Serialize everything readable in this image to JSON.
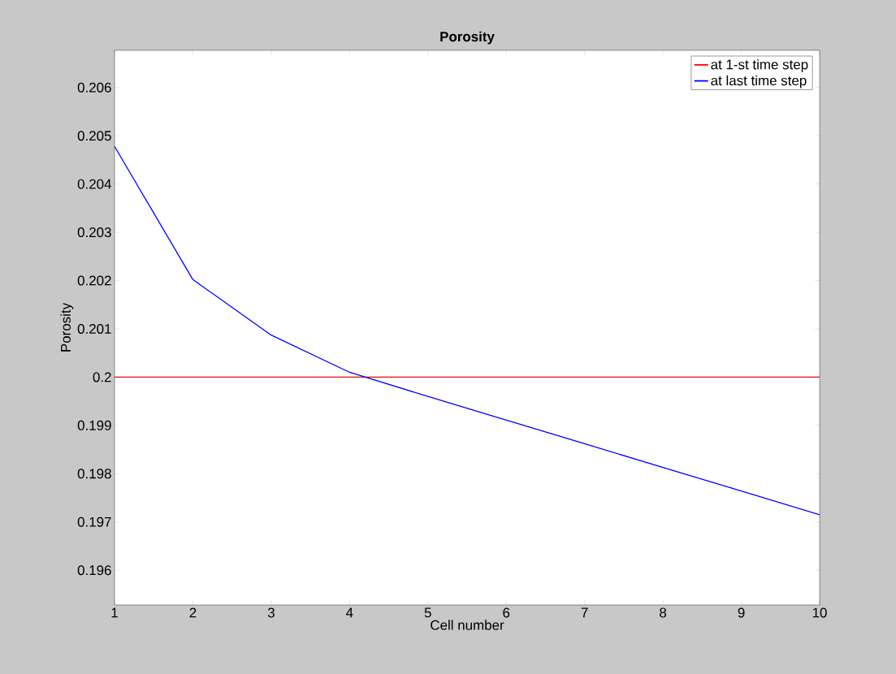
{
  "chart_data": {
    "type": "line",
    "title": "Porosity",
    "xlabel": "Cell number",
    "ylabel": "Porosity",
    "x": [
      1,
      2,
      3,
      4,
      5,
      6,
      7,
      8,
      9,
      10
    ],
    "series": [
      {
        "name": "at 1-st time step",
        "color": "#ff0000",
        "values": [
          0.2,
          0.2,
          0.2,
          0.2,
          0.2,
          0.2,
          0.2,
          0.2,
          0.2,
          0.2
        ]
      },
      {
        "name": "at last time step",
        "color": "#0000ff",
        "values": [
          0.20478,
          0.20202,
          0.20087,
          0.2001,
          0.1996,
          0.19911,
          0.19862,
          0.19813,
          0.19764,
          0.19715
        ]
      }
    ],
    "xlim": [
      1,
      10
    ],
    "xticks": [
      1,
      2,
      3,
      4,
      5,
      6,
      7,
      8,
      9,
      10
    ],
    "ylim": [
      0.19528,
      0.20677
    ],
    "yticks": [
      0.196,
      0.197,
      0.198,
      0.199,
      {
        "value": 0.2,
        "label": "0.2"
      },
      0.201,
      0.202,
      0.203,
      0.204,
      0.205,
      0.206
    ],
    "legend": "top right",
    "grid": false,
    "marker": "none",
    "line_style": "solid"
  }
}
